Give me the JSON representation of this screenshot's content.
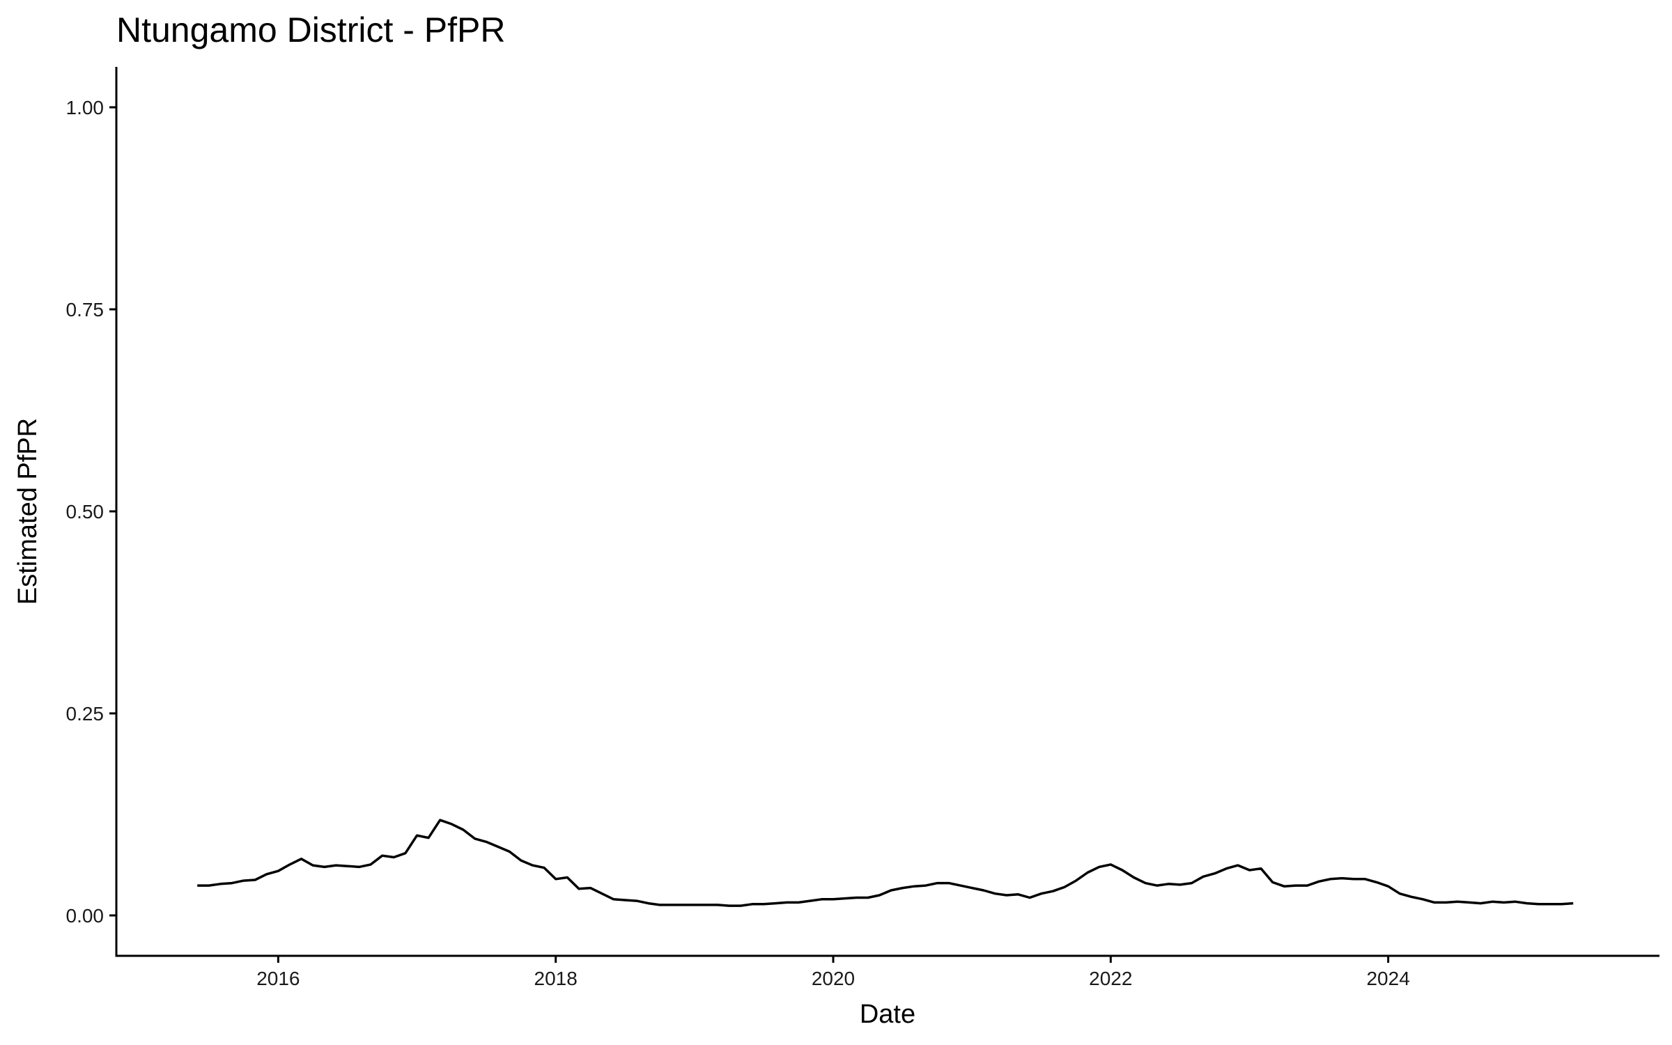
{
  "chart_data": {
    "type": "line",
    "title": "Ntungamo District - PfPR",
    "xlabel": "Date",
    "ylabel": "Estimated PfPR",
    "xlim": [
      "2014-11-01",
      "2025-12-15"
    ],
    "ylim": [
      -0.05,
      1.05
    ],
    "x_ticks": [
      "2016",
      "2018",
      "2020",
      "2022",
      "2024"
    ],
    "y_ticks": [
      "0.00",
      "0.25",
      "0.50",
      "0.75",
      "1.00"
    ],
    "grid": false,
    "legend": "none",
    "line_color": "#000000",
    "series": [
      {
        "x": [
          "2015-06",
          "2015-07",
          "2015-08",
          "2015-09",
          "2015-10",
          "2015-11",
          "2015-12",
          "2016-01",
          "2016-02",
          "2016-03",
          "2016-04",
          "2016-05",
          "2016-06",
          "2016-07",
          "2016-08",
          "2016-09",
          "2016-10",
          "2016-11",
          "2016-12",
          "2017-01",
          "2017-02",
          "2017-03",
          "2017-04",
          "2017-05",
          "2017-06",
          "2017-07",
          "2017-08",
          "2017-09",
          "2017-10",
          "2017-11",
          "2017-12",
          "2018-01",
          "2018-02",
          "2018-03",
          "2018-04",
          "2018-05",
          "2018-06",
          "2018-07",
          "2018-08",
          "2018-09",
          "2018-10",
          "2018-11",
          "2018-12",
          "2019-01",
          "2019-02",
          "2019-03",
          "2019-04",
          "2019-05",
          "2019-06",
          "2019-07",
          "2019-08",
          "2019-09",
          "2019-10",
          "2019-11",
          "2019-12",
          "2020-01",
          "2020-02",
          "2020-03",
          "2020-04",
          "2020-05",
          "2020-06",
          "2020-07",
          "2020-08",
          "2020-09",
          "2020-10",
          "2020-11",
          "2020-12",
          "2021-01",
          "2021-02",
          "2021-03",
          "2021-04",
          "2021-05",
          "2021-06",
          "2021-07",
          "2021-08",
          "2021-09",
          "2021-10",
          "2021-11",
          "2021-12",
          "2022-01",
          "2022-02",
          "2022-03",
          "2022-04",
          "2022-05",
          "2022-06",
          "2022-07",
          "2022-08",
          "2022-09",
          "2022-10",
          "2022-11",
          "2022-12",
          "2023-01",
          "2023-02",
          "2023-03",
          "2023-04",
          "2023-05",
          "2023-06",
          "2023-07",
          "2023-08",
          "2023-09",
          "2023-10",
          "2023-11",
          "2023-12",
          "2024-01",
          "2024-02",
          "2024-03",
          "2024-04",
          "2024-05",
          "2024-06",
          "2024-07",
          "2024-08",
          "2024-09",
          "2024-10",
          "2024-11",
          "2024-12",
          "2025-01",
          "2025-02",
          "2025-03",
          "2025-04",
          "2025-05"
        ],
        "values": [
          0.037,
          0.037,
          0.039,
          0.04,
          0.043,
          0.044,
          0.051,
          0.055,
          0.063,
          0.07,
          0.062,
          0.06,
          0.062,
          0.061,
          0.06,
          0.063,
          0.074,
          0.072,
          0.077,
          0.099,
          0.096,
          0.118,
          0.113,
          0.106,
          0.095,
          0.091,
          0.085,
          0.079,
          0.068,
          0.062,
          0.059,
          0.045,
          0.047,
          0.033,
          0.034,
          0.027,
          0.02,
          0.019,
          0.018,
          0.015,
          0.013,
          0.013,
          0.013,
          0.013,
          0.013,
          0.013,
          0.012,
          0.012,
          0.014,
          0.014,
          0.015,
          0.016,
          0.016,
          0.018,
          0.02,
          0.02,
          0.021,
          0.022,
          0.022,
          0.025,
          0.031,
          0.034,
          0.036,
          0.037,
          0.04,
          0.04,
          0.037,
          0.034,
          0.031,
          0.027,
          0.025,
          0.026,
          0.022,
          0.027,
          0.03,
          0.035,
          0.043,
          0.053,
          0.06,
          0.063,
          0.056,
          0.047,
          0.04,
          0.037,
          0.039,
          0.038,
          0.04,
          0.048,
          0.052,
          0.058,
          0.062,
          0.056,
          0.058,
          0.041,
          0.036,
          0.037,
          0.037,
          0.042,
          0.045,
          0.046,
          0.045,
          0.045,
          0.041,
          0.036,
          0.027,
          0.023,
          0.02,
          0.016,
          0.016,
          0.017,
          0.016,
          0.015,
          0.017,
          0.016,
          0.017,
          0.015,
          0.014,
          0.014,
          0.014,
          0.015
        ]
      }
    ]
  }
}
